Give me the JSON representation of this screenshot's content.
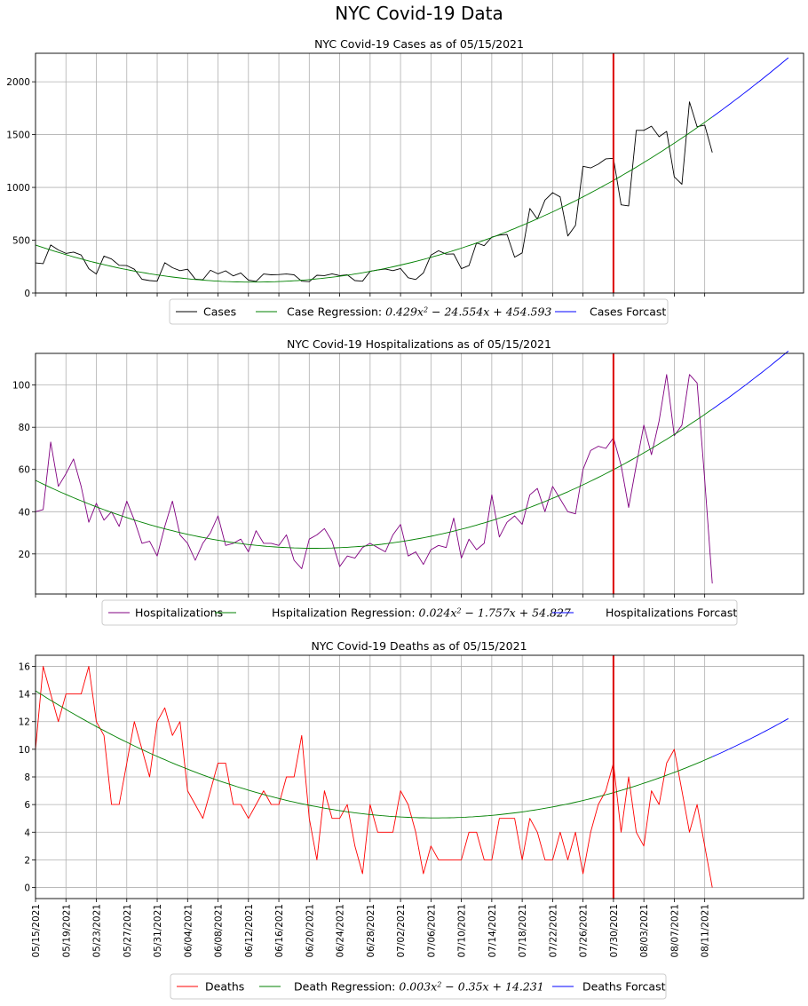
{
  "figure": {
    "suptitle": "NYC Covid-19 Data"
  },
  "chart_data": [
    {
      "type": "line",
      "title": "NYC Covid-19 Cases as of 05/15/2021",
      "x_start": "05/15/2021",
      "ylim": [
        0,
        2270
      ],
      "yticks": [
        0,
        500,
        1000,
        1500,
        2000
      ],
      "grid": true,
      "legend_placement": "below",
      "vertical_marker": {
        "date": "07/30/2021",
        "color": "#dd0000"
      },
      "series": [
        {
          "name": "Cases",
          "color": "#000000",
          "values": [
            285,
            278,
            455,
            408,
            375,
            388,
            360,
            230,
            180,
            350,
            322,
            262,
            260,
            225,
            130,
            118,
            112,
            287,
            240,
            212,
            225,
            132,
            125,
            215,
            182,
            210,
            162,
            190,
            122,
            110,
            180,
            172,
            175,
            180,
            172,
            112,
            108,
            168,
            165,
            182,
            165,
            172,
            118,
            112,
            205,
            218,
            228,
            212,
            232,
            145,
            128,
            190,
            358,
            400,
            368,
            370,
            230,
            260,
            475,
            448,
            530,
            548,
            555,
            340,
            380,
            800,
            700,
            880,
            950,
            910,
            540,
            640,
            1200,
            1185,
            1220,
            1270,
            1275,
            835,
            825,
            1540,
            1540,
            1580,
            1480,
            1530,
            1100,
            1030,
            1810,
            1575,
            1590,
            1330
          ]
        },
        {
          "name": "Case Regression: 0.429x² − 24.554x + 454.593",
          "label_html": "Case Regression: <tspan class='math'>0.429x</tspan><tspan class='math' baseline-shift='super' font-size='8'>2</tspan><tspan class='math'> − 24.554x + 454.593</tspan>",
          "color": "#008000",
          "regression": [
            0.429,
            -24.554,
            454.593
          ],
          "x_range": [
            0,
            89
          ]
        },
        {
          "name": "Cases Forcast",
          "color": "#0000ff",
          "regression": [
            0.429,
            -24.554,
            454.593
          ],
          "x_range": [
            89,
            99
          ]
        }
      ]
    },
    {
      "type": "line",
      "title": "NYC Covid-19 Hospitalizations as of 05/15/2021",
      "x_start": "05/15/2021",
      "ylim": [
        1,
        115
      ],
      "yticks": [
        20,
        40,
        60,
        80,
        100
      ],
      "grid": true,
      "legend_placement": "below",
      "vertical_marker": {
        "date": "07/30/2021",
        "color": "#dd0000"
      },
      "series": [
        {
          "name": "Hospitalizations",
          "color": "#800080",
          "values": [
            40,
            41,
            73,
            52,
            58,
            65,
            52,
            35,
            44,
            36,
            40,
            33,
            45,
            36,
            25,
            26,
            19,
            33,
            45,
            29,
            25,
            17,
            25,
            30,
            38,
            24,
            25,
            27,
            21,
            31,
            25,
            25,
            24,
            29,
            17,
            13,
            27,
            29,
            32,
            26,
            14,
            19,
            18,
            23,
            25,
            23,
            21,
            29,
            34,
            19,
            21,
            15,
            22,
            24,
            23,
            37,
            18,
            27,
            22,
            25,
            48,
            28,
            35,
            38,
            34,
            48,
            51,
            40,
            52,
            46,
            40,
            39,
            60,
            69,
            71,
            70,
            75,
            62,
            42,
            62,
            81,
            67,
            83,
            105,
            76,
            81,
            105,
            101,
            55,
            6
          ]
        },
        {
          "name": "Hspitalization Regression: 0.024x² − 1.757x + 54.827",
          "label_html": "Hspitalization Regression: <tspan class='math'>0.024x</tspan><tspan class='math' baseline-shift='super' font-size='8'>2</tspan><tspan class='math'> − 1.757x + 54.827</tspan>",
          "color": "#008000",
          "regression": [
            0.024,
            -1.757,
            54.827
          ],
          "x_range": [
            0,
            89
          ]
        },
        {
          "name": "Hospitalizations Forcast",
          "color": "#0000ff",
          "regression": [
            0.024,
            -1.757,
            54.827
          ],
          "x_range": [
            89,
            99
          ]
        }
      ]
    },
    {
      "type": "line",
      "title": "NYC Covid-19 Deaths as of 05/15/2021",
      "x_start": "05/15/2021",
      "ylim": [
        -0.8,
        16.8
      ],
      "yticks": [
        0,
        2,
        4,
        6,
        8,
        10,
        12,
        14,
        16
      ],
      "grid": true,
      "legend_placement": "below",
      "vertical_marker": {
        "date": "07/30/2021",
        "color": "#dd0000"
      },
      "xtick_labels": [
        "05/15/2021",
        "05/19/2021",
        "05/23/2021",
        "05/27/2021",
        "05/31/2021",
        "06/04/2021",
        "06/08/2021",
        "06/12/2021",
        "06/16/2021",
        "06/20/2021",
        "06/24/2021",
        "06/28/2021",
        "07/02/2021",
        "07/06/2021",
        "07/10/2021",
        "07/14/2021",
        "07/18/2021",
        "07/22/2021",
        "07/26/2021",
        "07/30/2021",
        "08/03/2021",
        "08/07/2021",
        "08/11/2021"
      ],
      "series": [
        {
          "name": "Deaths",
          "color": "#ff0000",
          "values": [
            10,
            16,
            14,
            12,
            14,
            14,
            14,
            16,
            12,
            11,
            6,
            6,
            9,
            12,
            10,
            8,
            12,
            13,
            11,
            12,
            7,
            6,
            5,
            7,
            9,
            9,
            6,
            6,
            5,
            6,
            7,
            6,
            6,
            8,
            8,
            11,
            5,
            2,
            7,
            5,
            5,
            6,
            3,
            1,
            6,
            4,
            4,
            4,
            7,
            6,
            4,
            1,
            3,
            2,
            2,
            2,
            2,
            4,
            4,
            2,
            2,
            5,
            5,
            5,
            2,
            5,
            4,
            2,
            2,
            4,
            2,
            4,
            1,
            4,
            6,
            7,
            9,
            4,
            8,
            4,
            3,
            7,
            6,
            9,
            10,
            7,
            4,
            6,
            3,
            0
          ]
        },
        {
          "name": "Death Regression: 0.003x² − 0.35x + 14.231",
          "label_html": "Death Regression: <tspan class='math'>0.003x</tspan><tspan class='math' baseline-shift='super' font-size='8'>2</tspan><tspan class='math'> − 0.35x + 14.231</tspan>",
          "color": "#008000",
          "regression": [
            0.00333,
            -0.35,
            14.231
          ],
          "x_range": [
            0,
            89
          ]
        },
        {
          "name": "Deaths Forcast",
          "color": "#0000ff",
          "regression": [
            0.00333,
            -0.35,
            14.231
          ],
          "x_range": [
            89,
            99
          ]
        }
      ]
    }
  ]
}
